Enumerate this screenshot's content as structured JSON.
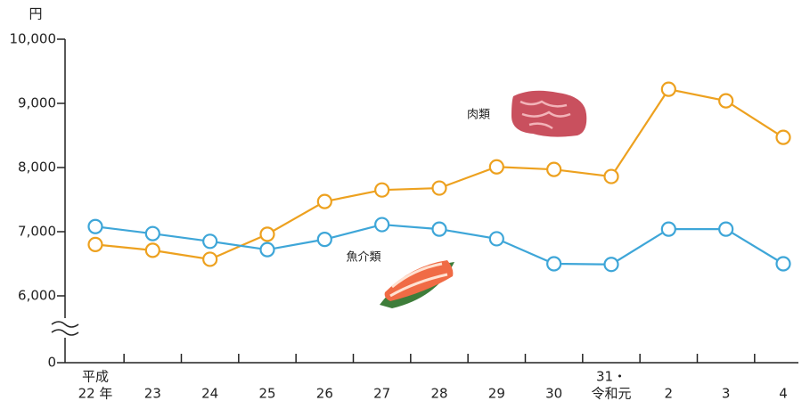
{
  "chart_data": {
    "type": "line",
    "y_label": "円",
    "categories": [
      [
        "平成",
        "22 年"
      ],
      "23",
      "24",
      "25",
      "26",
      "27",
      "28",
      "29",
      "30",
      [
        "31・",
        "令和元"
      ],
      "2",
      "3",
      "4"
    ],
    "series": [
      {
        "name": "肉類",
        "color": "#eda11f",
        "values": [
          6800,
          6710,
          6570,
          6960,
          7470,
          7650,
          7680,
          8010,
          7970,
          7860,
          9220,
          9040,
          8470
        ]
      },
      {
        "name": "魚介類",
        "color": "#3ea6d8",
        "values": [
          7080,
          6970,
          6850,
          6720,
          6880,
          7110,
          7040,
          6890,
          6500,
          6490,
          7040,
          7040,
          6500
        ]
      }
    ],
    "ylim": [
      0,
      10000
    ],
    "axis_break": [
      0,
      6000
    ],
    "yticks": [
      0,
      {
        "value": 6000,
        "label": "6,000"
      },
      {
        "value": 7000,
        "label": "7,000"
      },
      {
        "value": 8000,
        "label": "8,000"
      },
      {
        "value": 9000,
        "label": "9,000"
      },
      {
        "value": 10000,
        "label": "10,000"
      }
    ]
  }
}
